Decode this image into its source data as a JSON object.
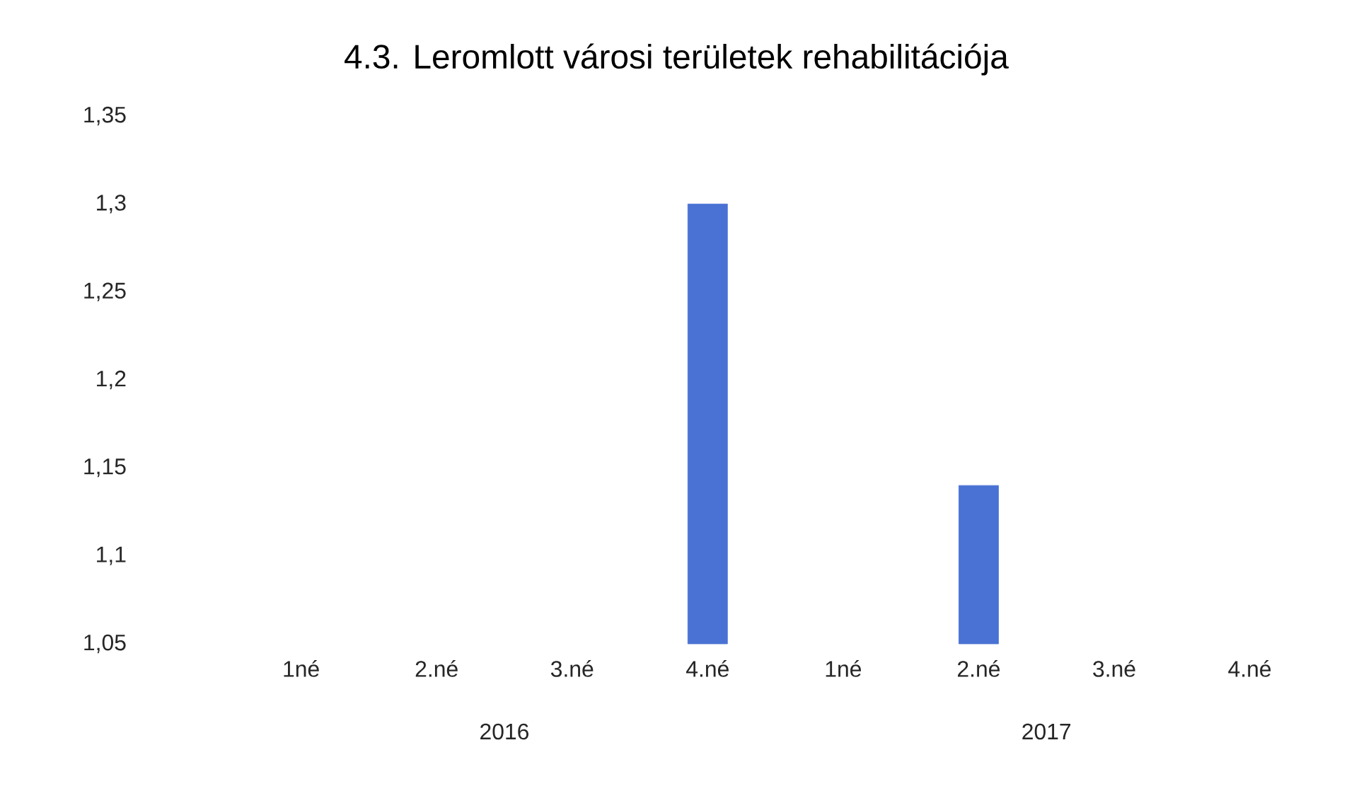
{
  "chart_data": {
    "type": "bar",
    "title": "4.3. Leromlott városi területek rehabilitációja",
    "categories": [
      "1né",
      "2.né",
      "3.né",
      "4.né",
      "1né",
      "2.né",
      "3.né",
      "4.né"
    ],
    "values": [
      null,
      null,
      null,
      1.3,
      null,
      1.14,
      null,
      null
    ],
    "color": "#4a72d4",
    "ylim": [
      1.05,
      1.35
    ],
    "yticks": [
      {
        "value": 1.05,
        "label": "1,05"
      },
      {
        "value": 1.1,
        "label": "1,1"
      },
      {
        "value": 1.15,
        "label": "1,15"
      },
      {
        "value": 1.2,
        "label": "1,2"
      },
      {
        "value": 1.25,
        "label": "1,25"
      },
      {
        "value": 1.3,
        "label": "1,3"
      },
      {
        "value": 1.35,
        "label": "1,35"
      }
    ],
    "annotations": [
      "2016",
      "2017"
    ]
  }
}
